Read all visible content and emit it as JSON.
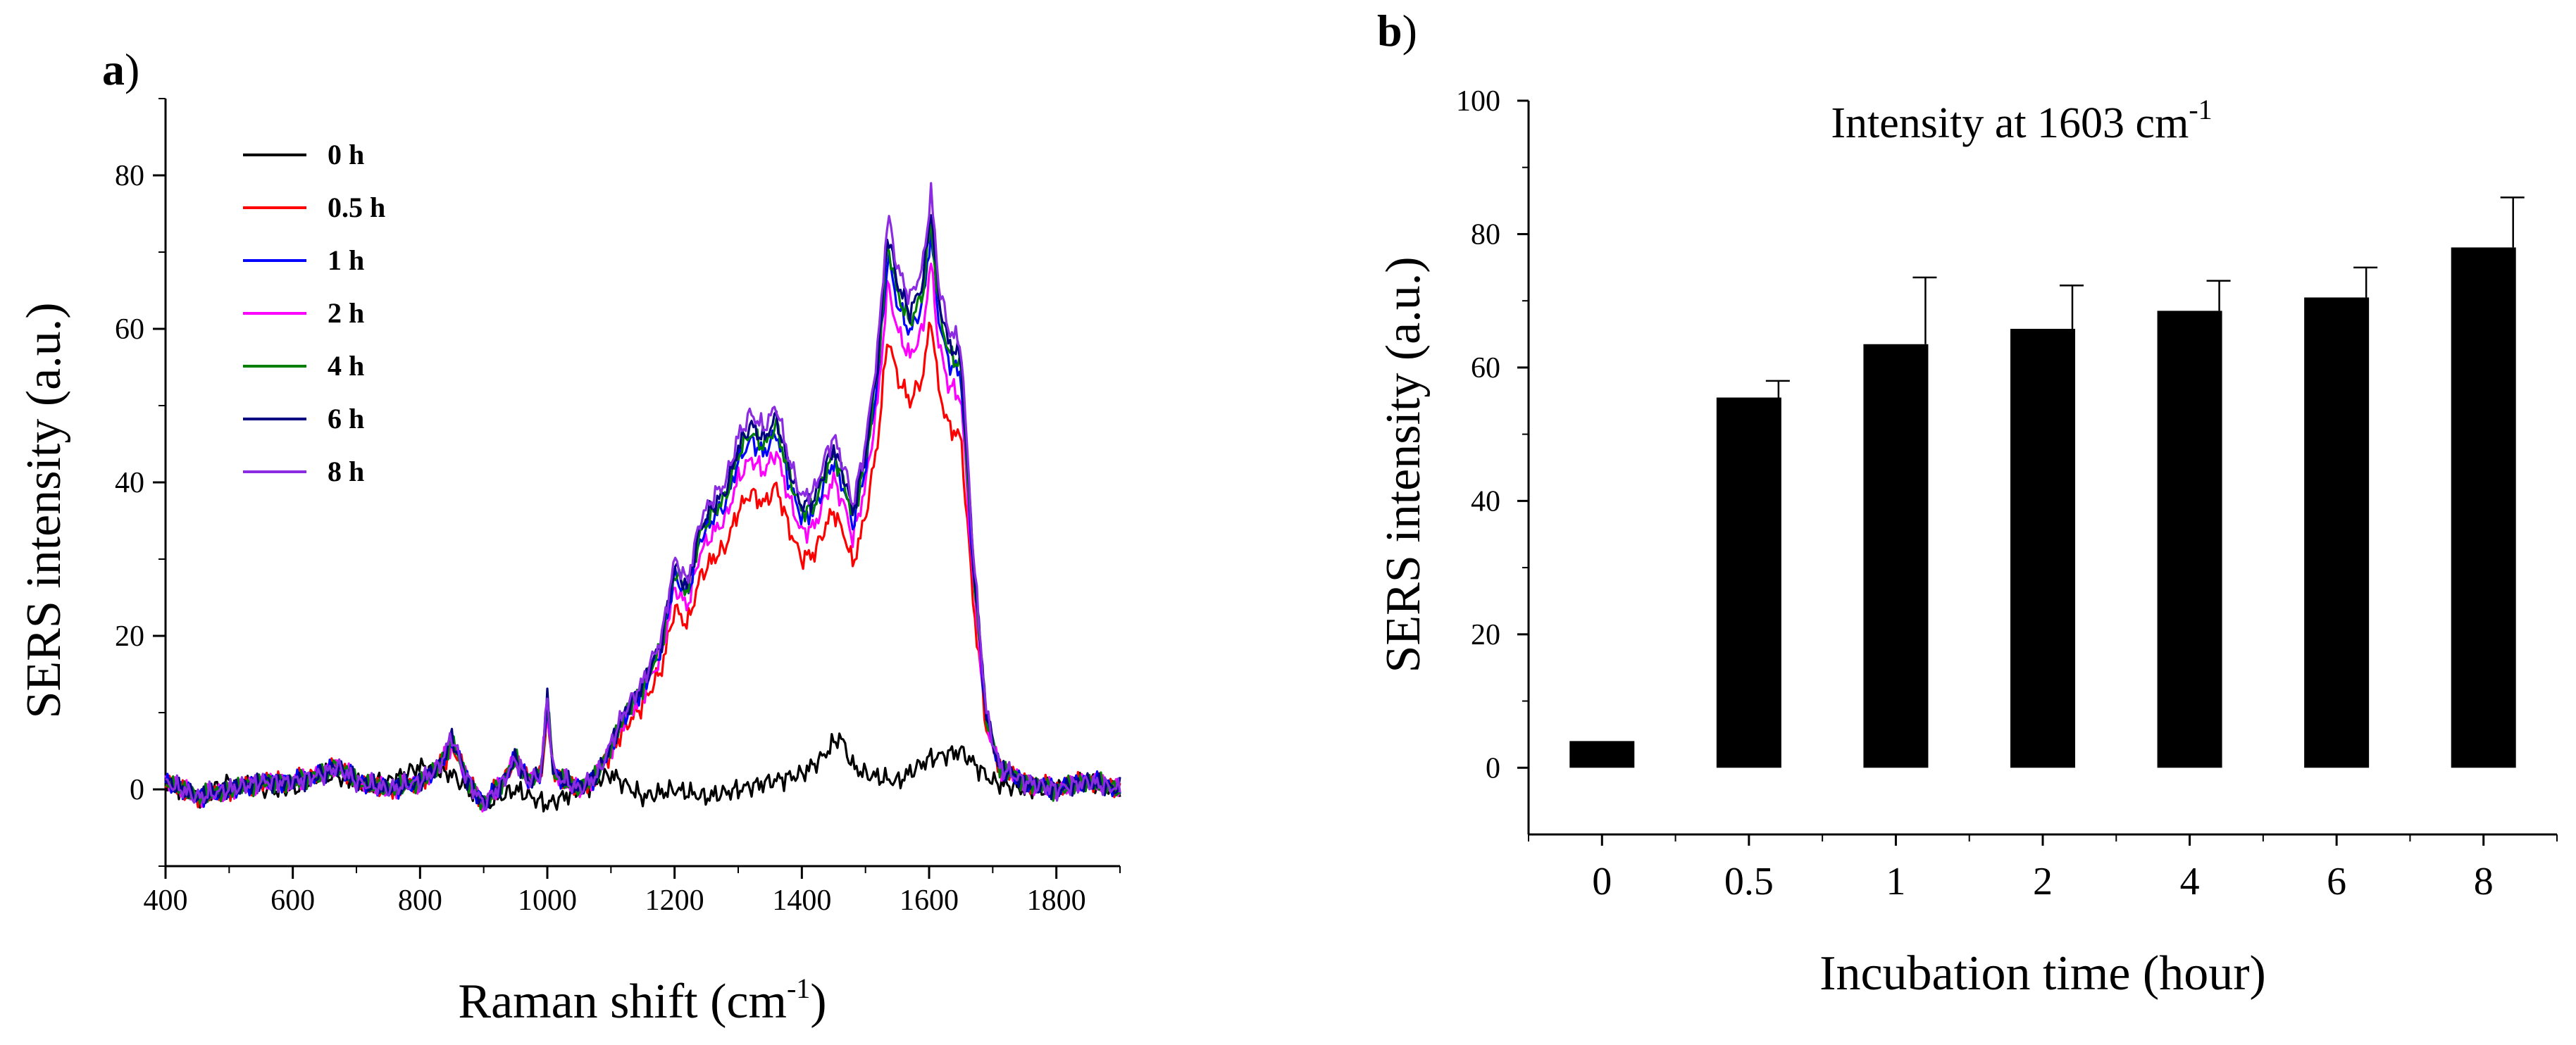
{
  "chart_data": [
    {
      "type": "line",
      "panel_label": "a",
      "title": "",
      "xlabel": "Raman  shift  (cm",
      "xlabel_sup": "-1",
      "xlabel_suffix": ")",
      "ylabel": "SERS intensity (a.u.)",
      "xlim": [
        400,
        1900
      ],
      "ylim": [
        -10,
        90
      ],
      "xticks": [
        400,
        600,
        800,
        1000,
        1200,
        1400,
        1600,
        1800
      ],
      "yticks": [
        0,
        20,
        40,
        60,
        80
      ],
      "legend_position": "top-left",
      "series": [
        {
          "name": "0 h",
          "color": "#000000",
          "scale": 0.0,
          "base": [
            [
              400,
              1
            ],
            [
              450,
              -1
            ],
            [
              500,
              1
            ],
            [
              550,
              0
            ],
            [
              600,
              0
            ],
            [
              650,
              2
            ],
            [
              700,
              1
            ],
            [
              750,
              1
            ],
            [
              800,
              3
            ],
            [
              850,
              2
            ],
            [
              900,
              -2
            ],
            [
              950,
              0
            ],
            [
              1000,
              -2
            ],
            [
              1050,
              0
            ],
            [
              1100,
              2
            ],
            [
              1150,
              -1
            ],
            [
              1200,
              0
            ],
            [
              1250,
              -1
            ],
            [
              1300,
              0
            ],
            [
              1350,
              1
            ],
            [
              1400,
              2
            ],
            [
              1430,
              4
            ],
            [
              1460,
              7
            ],
            [
              1480,
              3
            ],
            [
              1500,
              2
            ],
            [
              1550,
              1
            ],
            [
              1600,
              4
            ],
            [
              1650,
              5
            ],
            [
              1700,
              1
            ],
            [
              1750,
              0
            ],
            [
              1800,
              0
            ],
            [
              1850,
              1
            ],
            [
              1900,
              0
            ]
          ]
        },
        {
          "name": "0.5 h",
          "color": "#ff0000",
          "scale": 0.79
        },
        {
          "name": "1 h",
          "color": "#0000ff",
          "scale": 0.93
        },
        {
          "name": "2 h",
          "color": "#ff00ff",
          "scale": 0.88
        },
        {
          "name": "4 h",
          "color": "#008000",
          "scale": 0.95
        },
        {
          "name": "6 h",
          "color": "#000080",
          "scale": 0.97
        },
        {
          "name": "8 h",
          "color": "#8b2be2",
          "scale": 1.0
        }
      ],
      "profile": [
        [
          400,
          1
        ],
        [
          450,
          -1
        ],
        [
          500,
          0
        ],
        [
          550,
          1
        ],
        [
          600,
          1
        ],
        [
          650,
          2
        ],
        [
          670,
          3
        ],
        [
          700,
          1
        ],
        [
          750,
          0
        ],
        [
          800,
          1
        ],
        [
          830,
          3
        ],
        [
          850,
          7
        ],
        [
          870,
          2
        ],
        [
          900,
          -2
        ],
        [
          930,
          1
        ],
        [
          950,
          4
        ],
        [
          970,
          1
        ],
        [
          990,
          2
        ],
        [
          1000,
          12
        ],
        [
          1010,
          2
        ],
        [
          1050,
          0
        ],
        [
          1080,
          2
        ],
        [
          1100,
          6
        ],
        [
          1120,
          10
        ],
        [
          1150,
          14
        ],
        [
          1180,
          20
        ],
        [
          1200,
          30
        ],
        [
          1220,
          27
        ],
        [
          1240,
          35
        ],
        [
          1260,
          38
        ],
        [
          1280,
          40
        ],
        [
          1300,
          46
        ],
        [
          1320,
          49
        ],
        [
          1340,
          47
        ],
        [
          1360,
          50
        ],
        [
          1380,
          43
        ],
        [
          1400,
          38
        ],
        [
          1420,
          39
        ],
        [
          1440,
          44
        ],
        [
          1450,
          46
        ],
        [
          1470,
          41
        ],
        [
          1480,
          37
        ],
        [
          1500,
          45
        ],
        [
          1520,
          58
        ],
        [
          1535,
          75
        ],
        [
          1550,
          68
        ],
        [
          1570,
          64
        ],
        [
          1590,
          68
        ],
        [
          1603,
          78
        ],
        [
          1615,
          66
        ],
        [
          1630,
          60
        ],
        [
          1650,
          58
        ],
        [
          1670,
          30
        ],
        [
          1690,
          10
        ],
        [
          1710,
          3
        ],
        [
          1750,
          1
        ],
        [
          1800,
          0
        ],
        [
          1850,
          1
        ],
        [
          1900,
          0
        ]
      ]
    },
    {
      "type": "bar",
      "panel_label": "b",
      "title": "Intensity at 1603 cm",
      "title_sup": "-1",
      "xlabel": "Incubation time (hour)",
      "ylabel": "SERS intensity  (a.u.)",
      "categories": [
        "0",
        "0.5",
        "1",
        "2",
        "4",
        "6",
        "8"
      ],
      "values": [
        4,
        55.5,
        63.5,
        65.8,
        68.5,
        70.5,
        78
      ],
      "errors": [
        0,
        2.5,
        10,
        6.5,
        4.5,
        4.5,
        7.5
      ],
      "ylim": [
        -10,
        100
      ],
      "yticks": [
        0,
        20,
        40,
        60,
        80,
        100
      ]
    }
  ]
}
